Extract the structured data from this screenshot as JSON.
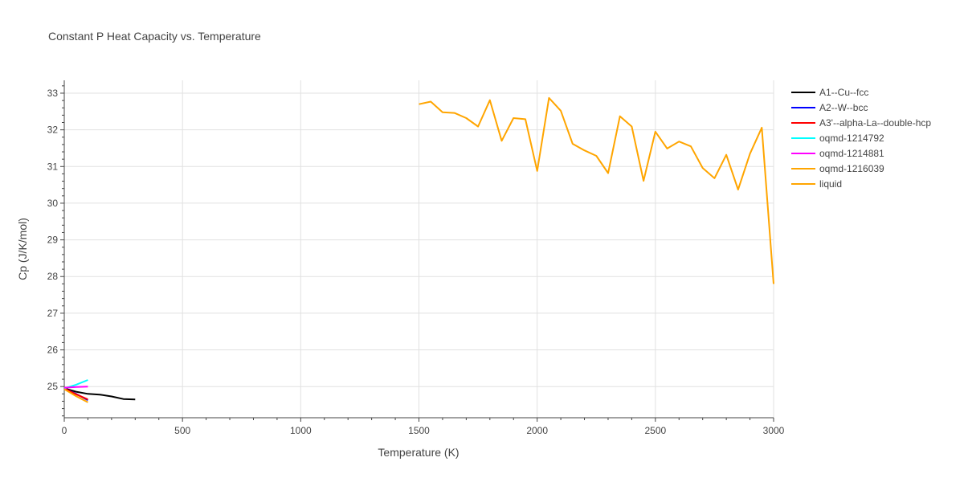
{
  "chart_data": {
    "type": "line",
    "title": "Constant P Heat Capacity vs. Temperature",
    "xlabel": "Temperature (K)",
    "ylabel": "Cp (J/K/mol)",
    "xlim": [
      0,
      3000
    ],
    "ylim": [
      24.15,
      33.35
    ],
    "x_ticks": [
      0,
      500,
      1000,
      1500,
      2000,
      2500,
      3000
    ],
    "y_ticks": [
      25,
      26,
      27,
      28,
      29,
      30,
      31,
      32,
      33
    ],
    "grid": true,
    "legend_position": "top-right",
    "series": [
      {
        "name": "A1--Cu--fcc",
        "color": "#000000",
        "x": [
          0,
          50,
          100,
          150,
          200,
          250,
          300
        ],
        "y": [
          24.95,
          24.86,
          24.8,
          24.78,
          24.73,
          24.66,
          24.65
        ]
      },
      {
        "name": "A2--W--bcc",
        "color": "#0000ff",
        "x": [
          0,
          50,
          100
        ],
        "y": [
          24.95,
          24.8,
          24.63
        ]
      },
      {
        "name": "A3'--alpha-La--double-hcp",
        "color": "#ff0000",
        "x": [
          0,
          50,
          100
        ],
        "y": [
          24.95,
          24.79,
          24.65
        ]
      },
      {
        "name": "oqmd-1214792",
        "color": "#00ffff",
        "x": [
          0,
          50,
          100
        ],
        "y": [
          24.95,
          25.05,
          25.18
        ]
      },
      {
        "name": "oqmd-1214881",
        "color": "#ff00ff",
        "x": [
          0,
          50,
          100
        ],
        "y": [
          24.97,
          24.99,
          25.0
        ]
      },
      {
        "name": "oqmd-1216039",
        "color": "#ffa500",
        "x": [
          0,
          50,
          100
        ],
        "y": [
          24.93,
          24.74,
          24.57
        ]
      },
      {
        "name": "liquid",
        "color": "#ffa500",
        "x": [
          1500,
          1550,
          1600,
          1650,
          1700,
          1750,
          1800,
          1850,
          1900,
          1950,
          2000,
          2050,
          2100,
          2150,
          2200,
          2250,
          2300,
          2350,
          2400,
          2450,
          2500,
          2550,
          2600,
          2650,
          2700,
          2750,
          2800,
          2850,
          2900,
          2950,
          3000
        ],
        "y": [
          32.7,
          32.77,
          32.48,
          32.46,
          32.32,
          32.09,
          32.81,
          31.7,
          32.32,
          32.29,
          30.88,
          32.87,
          32.52,
          31.62,
          31.44,
          31.29,
          30.82,
          32.37,
          32.09,
          30.61,
          31.95,
          31.49,
          31.68,
          31.55,
          30.96,
          30.68,
          31.32,
          30.37,
          31.35,
          32.06,
          27.8
        ]
      }
    ]
  }
}
